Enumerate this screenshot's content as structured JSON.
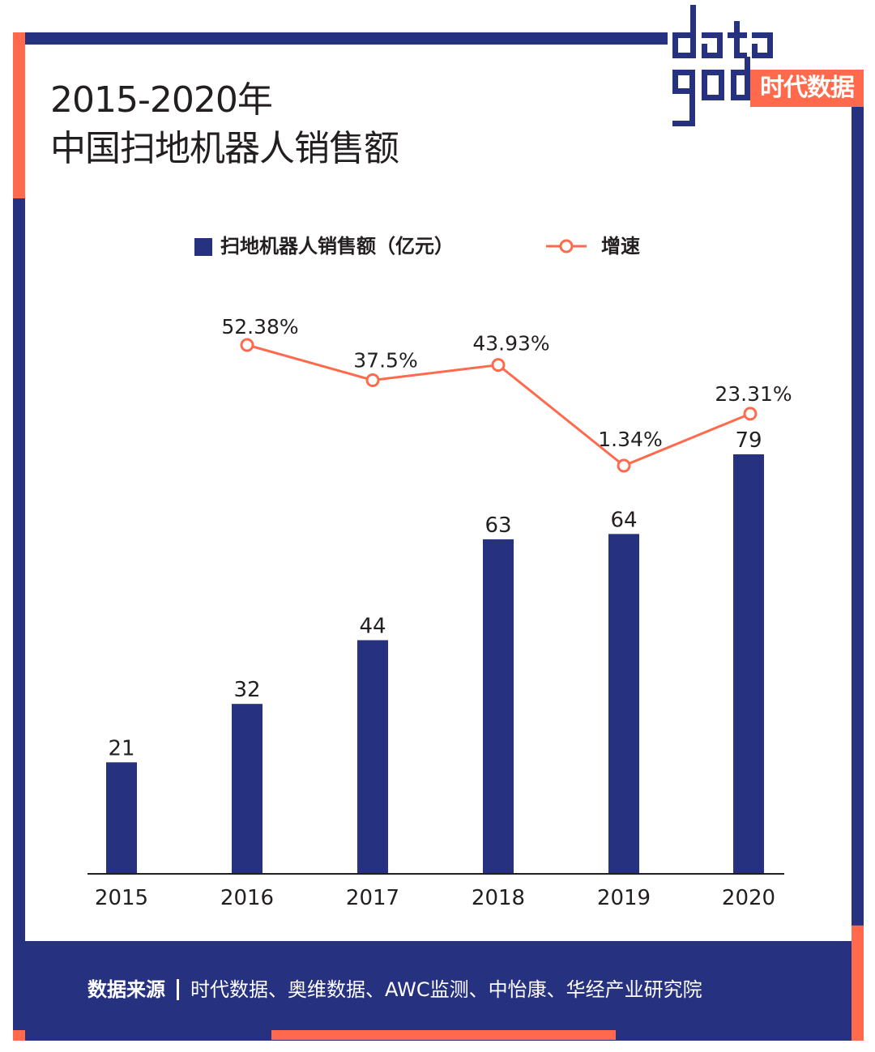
{
  "title_line1": "2015-2020年",
  "title_line2": "中国扫地机器人销售额",
  "logo": {
    "word": "datagod",
    "box_text": "时代数据"
  },
  "colors": {
    "navy": "#26317f",
    "coral": "#ff6a4d"
  },
  "legend": {
    "bar_label": "扫地机器人销售额（亿元）",
    "line_label": "增速"
  },
  "source": {
    "key": "数据来源",
    "text": "时代数据、奥维数据、AWC监测、中怡康、华经产业研究院"
  },
  "chart_data": {
    "type": "bar",
    "categories": [
      "2015",
      "2016",
      "2017",
      "2018",
      "2019",
      "2020"
    ],
    "series": [
      {
        "name": "扫地机器人销售额（亿元）",
        "type": "bar",
        "values": [
          21,
          32,
          44,
          63,
          64,
          79
        ],
        "labels": [
          "21",
          "32",
          "44",
          "63",
          "64",
          "79"
        ]
      },
      {
        "name": "增速",
        "type": "line",
        "values": [
          null,
          52.38,
          37.5,
          43.93,
          1.34,
          23.31
        ],
        "labels": [
          "",
          "52.38%",
          "37.5%",
          "43.93%",
          "1.34%",
          "23.31%"
        ]
      }
    ],
    "grid": false,
    "legend_position": "top"
  }
}
